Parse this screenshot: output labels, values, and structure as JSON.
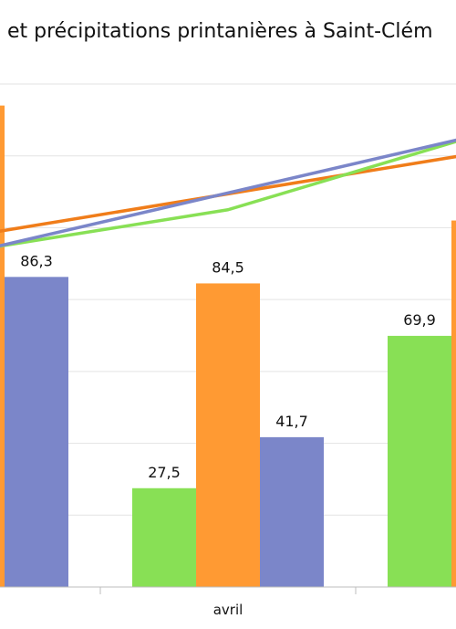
{
  "chart_data": {
    "type": "bar",
    "title": "et précipitations printanières à Saint-Clém",
    "categories": [
      "",
      "avril",
      ""
    ],
    "ylim": [
      0,
      140
    ],
    "grid": true,
    "series": [
      {
        "color": "#88e055",
        "values": [
          null,
          27.5,
          69.9
        ],
        "labels": [
          "",
          "27,5",
          "69,9"
        ]
      },
      {
        "color": "#ff9a33",
        "values": [
          134.0,
          84.5,
          102.0
        ],
        "labels": [
          "",
          "84,5",
          ""
        ]
      },
      {
        "color": "#7b86c9",
        "values": [
          86.3,
          41.7,
          null
        ],
        "labels": [
          "86,3",
          "41,7",
          ""
        ]
      }
    ],
    "trend_lines": [
      {
        "color": "#f07d1a",
        "points": [
          [
            -0.5,
            92
          ],
          [
            2.6,
            128
          ]
        ]
      },
      {
        "color": "#88e055",
        "points": [
          [
            -0.5,
            88
          ],
          [
            1.0,
            105
          ],
          [
            2.6,
            139
          ]
        ]
      },
      {
        "color": "#7b86c9",
        "points": [
          [
            -0.5,
            85
          ],
          [
            2.6,
            136
          ]
        ]
      }
    ]
  }
}
